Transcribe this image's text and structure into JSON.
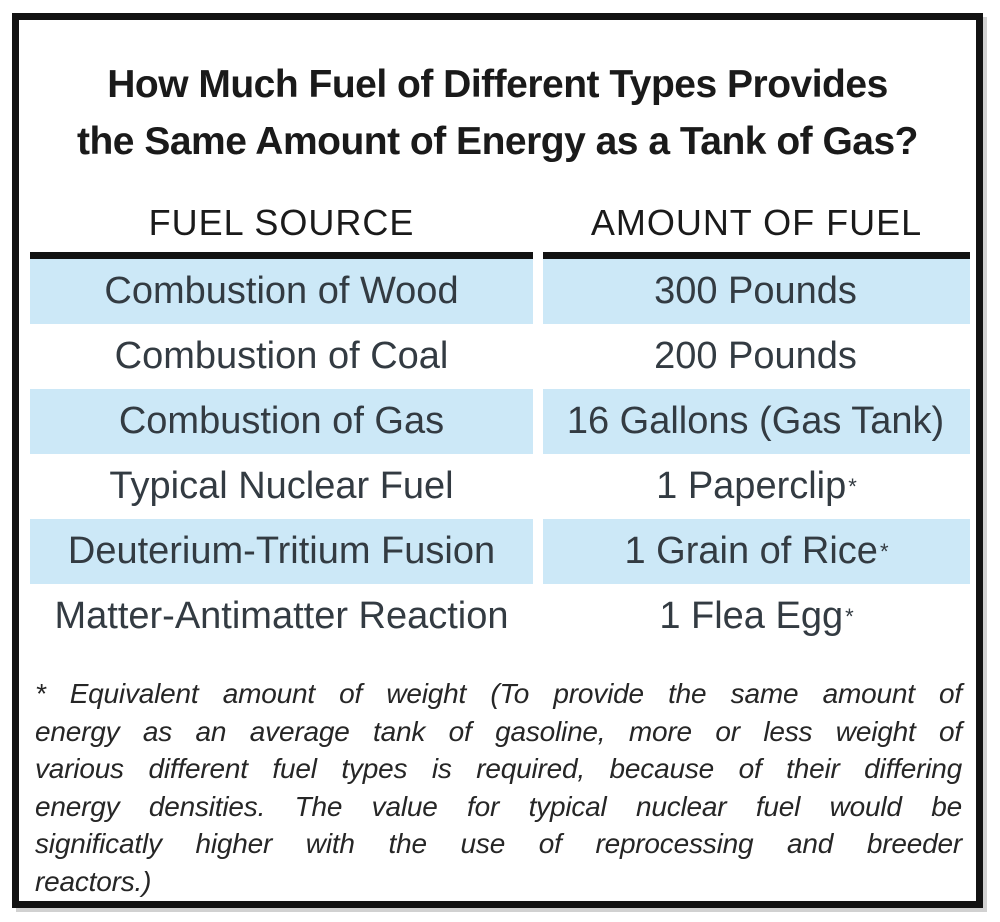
{
  "title": {
    "line1": "How Much Fuel of Different Types Provides",
    "line2": "the Same Amount of Energy as a Tank of Gas?"
  },
  "table": {
    "columns": [
      {
        "label": "FUEL SOURCE"
      },
      {
        "label": "AMOUNT OF FUEL"
      }
    ],
    "rows": [
      {
        "source": "Combustion of Wood",
        "amount": "300 Pounds",
        "marker": "",
        "highlighted": true
      },
      {
        "source": "Combustion of Coal",
        "amount": "200 Pounds",
        "marker": "",
        "highlighted": false
      },
      {
        "source": "Combustion of Gas",
        "amount": "16 Gallons (Gas Tank)",
        "marker": "",
        "highlighted": true
      },
      {
        "source": "Typical Nuclear Fuel",
        "amount": "1 Paperclip",
        "marker": "*",
        "highlighted": false
      },
      {
        "source": "Deuterium-Tritium Fusion",
        "amount": "1 Grain of Rice",
        "marker": "*",
        "highlighted": true
      },
      {
        "source": "Matter-Antimatter Reaction",
        "amount": "1 Flea Egg",
        "marker": "*",
        "highlighted": false
      }
    ]
  },
  "footnote": {
    "marker": "*",
    "lines": [
      "Equivalent amount of weight (To provide the same amount of",
      "energy as an average tank of gasoline, more or less weight of",
      "various different fuel types is required, because of their differing",
      "energy densities. The value for typical nuclear fuel would be",
      "significatly higher with the use of reprocessing and breeder",
      "reactors.)"
    ]
  },
  "chart_data": {
    "type": "table",
    "title": "How Much Fuel of Different Types Provides the Same Amount of Energy as a Tank of Gas?",
    "columns": [
      "FUEL SOURCE",
      "AMOUNT OF FUEL"
    ],
    "rows": [
      [
        "Combustion of Wood",
        "300 Pounds"
      ],
      [
        "Combustion of Coal",
        "200 Pounds"
      ],
      [
        "Combustion of Gas",
        "16 Gallons (Gas Tank)"
      ],
      [
        "Typical Nuclear Fuel",
        "1 Paperclip*"
      ],
      [
        "Deuterium-Tritium Fusion",
        "1 Grain of Rice*"
      ],
      [
        "Matter-Antimatter Reaction",
        "1 Flea Egg*"
      ]
    ],
    "footnote": "* Equivalent amount of weight (To provide the same amount of energy as an average tank of gasoline, more or less weight of various different fuel types is required, because of their differing energy densities. The value for typical nuclear fuel would be significatly higher with the use of reprocessing and breeder reactors.)"
  },
  "colors": {
    "row_highlight": "#cce8f7",
    "frame_border": "#121212",
    "heading_text": "#1a1a1a",
    "body_text": "#333b42"
  }
}
